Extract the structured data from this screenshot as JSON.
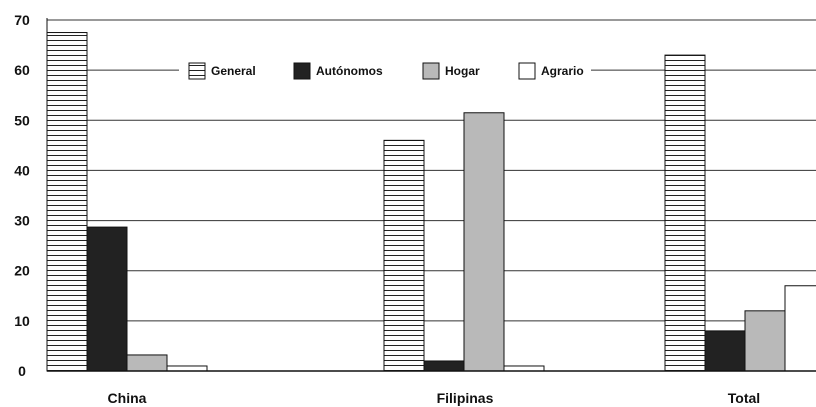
{
  "chart_data": {
    "type": "bar",
    "title": "",
    "xlabel": "",
    "ylabel": "",
    "categories": [
      "China",
      "Filipinas",
      "Total"
    ],
    "series": [
      {
        "name": "General",
        "values": [
          67.5,
          46,
          63
        ],
        "fill": "hatch"
      },
      {
        "name": "Autónomos",
        "values": [
          28.7,
          2,
          8
        ],
        "fill": "#222222"
      },
      {
        "name": "Hogar",
        "values": [
          3.2,
          51.5,
          12
        ],
        "fill": "#b9b9b9"
      },
      {
        "name": "Agrario",
        "values": [
          1,
          1,
          17
        ],
        "fill": "#ffffff"
      }
    ],
    "ylim": [
      0,
      70
    ],
    "yticks": [
      0,
      10,
      20,
      30,
      40,
      50,
      60,
      70
    ],
    "grid": true,
    "legend": "top"
  }
}
